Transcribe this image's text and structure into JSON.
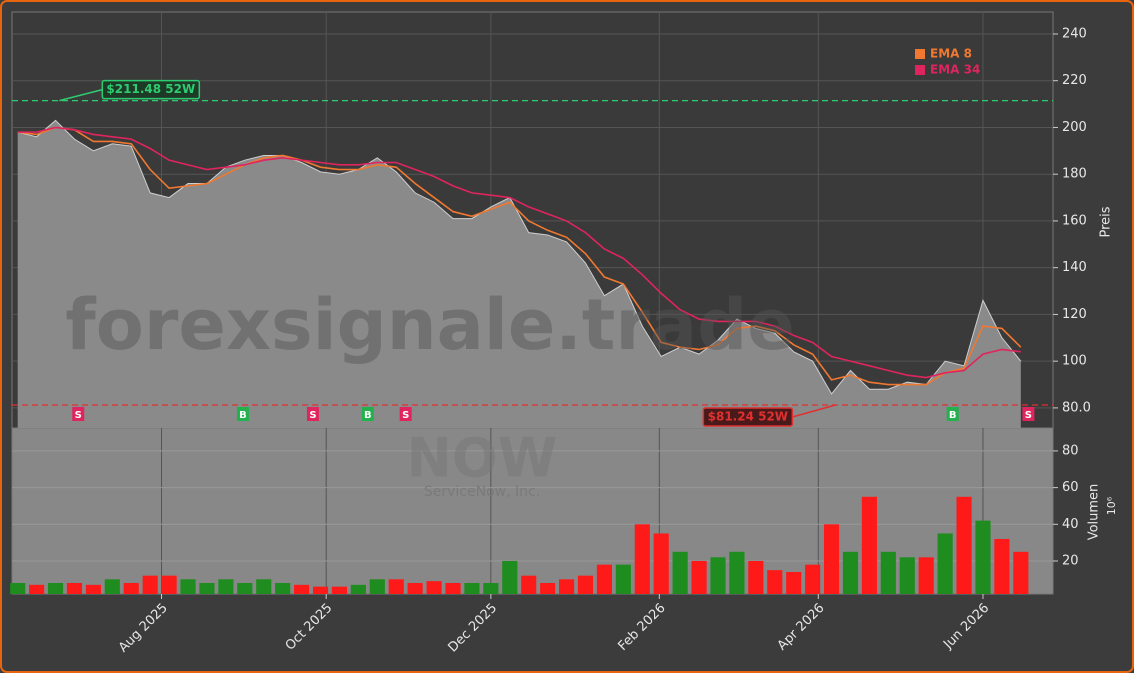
{
  "chart_data": [
    {
      "type": "area",
      "x": [
        0,
        1,
        2,
        3,
        4,
        5,
        6,
        7,
        8,
        9,
        10,
        11,
        12,
        13,
        14,
        15,
        16,
        17,
        18,
        19,
        20,
        21,
        22,
        23,
        24,
        25,
        26,
        27,
        28,
        29,
        30,
        31,
        32,
        33,
        34,
        35,
        36,
        37,
        38,
        39,
        40,
        41,
        42,
        43,
        44,
        45,
        46,
        47,
        48,
        49,
        50,
        51,
        52,
        53
      ],
      "values": [
        198,
        196,
        203,
        195,
        190,
        193,
        192,
        172,
        170,
        176,
        176,
        183,
        186,
        188,
        188,
        185,
        181,
        180,
        182,
        187,
        181,
        172,
        168,
        161,
        161,
        166,
        170,
        155,
        154,
        151,
        142,
        128,
        133,
        115,
        102,
        106,
        103,
        109,
        118,
        114,
        112,
        104,
        100,
        86,
        96,
        88,
        88,
        91,
        90,
        100,
        98,
        126,
        110,
        100
      ],
      "color": "#8a8a8a",
      "series": [
        {
          "name": "EMA 8",
          "color": "#f07830",
          "values": [
            198,
            197,
            200,
            199,
            194,
            194,
            193,
            182,
            174,
            175,
            176,
            180,
            184,
            187,
            188,
            186,
            183,
            182,
            182,
            184,
            183,
            176,
            170,
            164,
            162,
            165,
            168,
            160,
            156,
            153,
            146,
            136,
            133,
            121,
            108,
            106,
            105,
            107,
            114,
            115,
            113,
            107,
            103,
            92,
            94,
            91,
            90,
            90,
            90,
            95,
            97,
            115,
            114,
            106
          ]
        },
        {
          "name": "EMA 34",
          "color": "#e0245e",
          "values": [
            198,
            198,
            200,
            199,
            197,
            196,
            195,
            191,
            186,
            184,
            182,
            183,
            184,
            186,
            187,
            186,
            185,
            184,
            184,
            185,
            185,
            182,
            179,
            175,
            172,
            171,
            170,
            166,
            163,
            160,
            155,
            148,
            144,
            137,
            129,
            122,
            118,
            117,
            117,
            117,
            115,
            111,
            108,
            102,
            100,
            98,
            96,
            94,
            93,
            95,
            96,
            103,
            105,
            104
          ]
        }
      ],
      "xlim": [
        -0.3,
        54.7
      ],
      "xticks": [
        {
          "value": 7.6,
          "label": "Aug 2025"
        },
        {
          "value": 16.3,
          "label": "Oct 2025"
        },
        {
          "value": 25.0,
          "label": "Dec 2025"
        },
        {
          "value": 33.9,
          "label": "Feb 2026"
        },
        {
          "value": 42.3,
          "label": "Apr 2026"
        },
        {
          "value": 51.0,
          "label": "Jun 2026"
        }
      ],
      "ylim": [
        71.4,
        249.4
      ],
      "yticks": [
        {
          "value": 80,
          "label": "80.0"
        },
        100,
        120,
        140,
        160,
        180,
        200,
        220,
        240
      ],
      "y_label": "Preis",
      "grid": true,
      "legend": "upper right",
      "annotations": [
        {
          "text": "$211.48 52W",
          "value": 211.48,
          "x": 2.2,
          "color": "#2ecc71"
        },
        {
          "text": "$81.24 52W",
          "value": 81.24,
          "x": 43.2,
          "color": "#e03030"
        }
      ],
      "signals": [
        {
          "x": 3.2,
          "label": "S",
          "color": "#e0245e"
        },
        {
          "x": 11.9,
          "label": "B",
          "color": "#22b14c"
        },
        {
          "x": 15.6,
          "label": "S",
          "color": "#e0245e"
        },
        {
          "x": 18.5,
          "label": "B",
          "color": "#22b14c"
        },
        {
          "x": 20.5,
          "label": "S",
          "color": "#e0245e"
        },
        {
          "x": 49.4,
          "label": "B",
          "color": "#22b14c"
        },
        {
          "x": 53.4,
          "label": "S",
          "color": "#e0245e"
        }
      ],
      "watermark": "forexsignale.trade",
      "symbol": "NOW",
      "company": "ServiceNow, Inc."
    },
    {
      "type": "bar",
      "x": [
        0,
        1,
        2,
        3,
        4,
        5,
        6,
        7,
        8,
        9,
        10,
        11,
        12,
        13,
        14,
        15,
        16,
        17,
        18,
        19,
        20,
        21,
        22,
        23,
        24,
        25,
        26,
        27,
        28,
        29,
        30,
        31,
        32,
        33,
        34,
        35,
        36,
        37,
        38,
        39,
        40,
        41,
        42,
        43,
        44,
        45,
        46,
        47,
        48,
        49,
        50,
        51,
        52,
        53
      ],
      "values": [
        8,
        7,
        8,
        8,
        7,
        10,
        8,
        12,
        12,
        10,
        8,
        10,
        8,
        10,
        8,
        7,
        6,
        6,
        7,
        10,
        10,
        8,
        9,
        8,
        8,
        8,
        20,
        12,
        8,
        10,
        12,
        18,
        18,
        40,
        35,
        25,
        20,
        22,
        25,
        20,
        15,
        14,
        18,
        40,
        25,
        55,
        25,
        22,
        22,
        35,
        55,
        42,
        32,
        25
      ],
      "up_color": "#1e8c1e",
      "down_color": "#ff1a1a",
      "ylim": [
        2,
        92.5
      ],
      "yticks": [
        20,
        40,
        60,
        80
      ],
      "y_label": "Volumen",
      "unit": "10⁶"
    }
  ]
}
